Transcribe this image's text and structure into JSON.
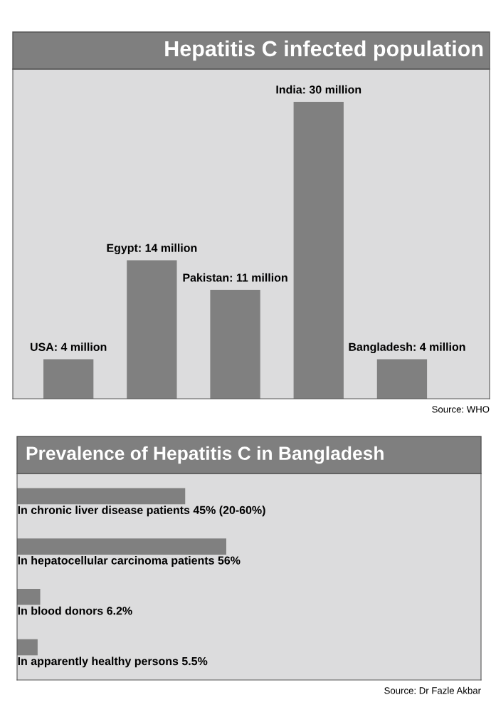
{
  "chart_data": [
    {
      "type": "bar",
      "title": "Hepatitis C infected population",
      "categories": [
        null,
        null,
        null,
        null,
        null
      ],
      "values": [
        4,
        14,
        11,
        30,
        4
      ],
      "value_labels": [
        "USA: 4 million",
        "Egypt: 14 million",
        "Pakistan: 11 million",
        "India: 30 million",
        "Bangladesh: 4 million"
      ],
      "color": "#808080",
      "annotations": [
        "Source: WHO"
      ]
    },
    {
      "type": "bar",
      "orientation": "horizontal",
      "title": "Prevalence of Hepatitis C in Bangladesh",
      "categories": [
        null,
        null,
        null,
        null
      ],
      "values": [
        45,
        56,
        6.2,
        5.5
      ],
      "value_labels": [
        "In chronic liver disease patients 45% (20-60%)",
        "In hepatocellular carcinoma patients 56%",
        "In blood donors 6.2%",
        "In apparently healthy persons 5.5%"
      ],
      "color": "#808080",
      "annotations": [
        "Source: Dr Fazle Akbar"
      ]
    }
  ]
}
